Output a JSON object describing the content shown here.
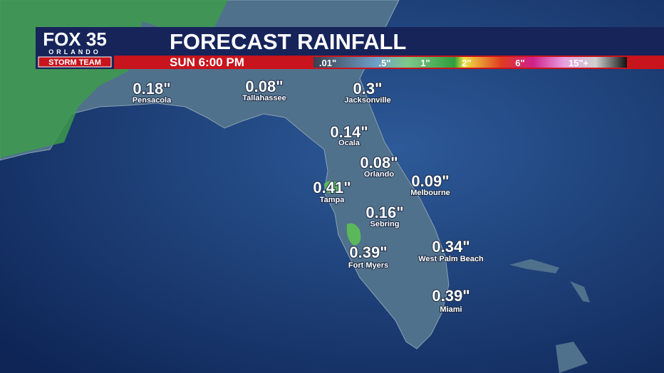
{
  "header": {
    "logo": {
      "brand": "FOX 35",
      "city": "ORLANDO",
      "team": "STORM TEAM"
    },
    "title": "FORECAST RAINFALL",
    "time": "SUN 6:00 PM"
  },
  "legend": {
    "labels": [
      ".01\"",
      ".5\"",
      "1\"",
      "2\"",
      "6\"",
      "15\"+"
    ]
  },
  "cities": [
    {
      "name": "Pensacola",
      "value": "0.18\""
    },
    {
      "name": "Tallahassee",
      "value": "0.08\""
    },
    {
      "name": "Jacksonville",
      "value": "0.3\""
    },
    {
      "name": "Ocala",
      "value": "0.14\""
    },
    {
      "name": "Orlando",
      "value": "0.08\""
    },
    {
      "name": "Melbourne",
      "value": "0.09\""
    },
    {
      "name": "Tampa",
      "value": "0.41\""
    },
    {
      "name": "Sebring",
      "value": "0.16\""
    },
    {
      "name": "Fort Myers",
      "value": "0.39\""
    },
    {
      "name": "West Palm Beach",
      "value": "0.34\""
    },
    {
      "name": "Miami",
      "value": "0.39\""
    }
  ]
}
